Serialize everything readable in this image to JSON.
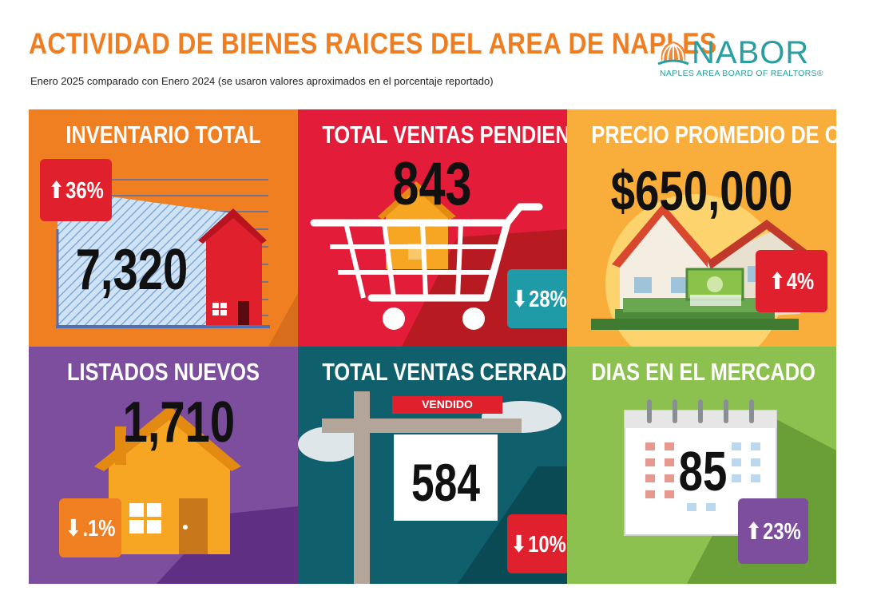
{
  "header": {
    "title": "ACTIVIDAD DE BIENES RAICES DEL AREA DE NAPLES",
    "subtitle": "Enero 2025 comparado con Enero 2024 (se usaron valores aproximados en el porcentaje reportado)",
    "logo_word": "NABOR",
    "logo_sub": "NAPLES AREA BOARD OF REALTORS®"
  },
  "tiles": [
    {
      "title": "INVENTARIO TOTAL",
      "value": "7,320",
      "change": "36%",
      "direction": "up",
      "bg": "#f07f22",
      "badge": "#e0202d"
    },
    {
      "title": "TOTAL VENTAS PENDIENTES",
      "value": "843",
      "change": "28%",
      "direction": "down",
      "bg": "#e31c3a",
      "badge": "#1e9ba6"
    },
    {
      "title": "PRECIO PROMEDIO DE CIERRE",
      "value": "$650,000",
      "change": "4%",
      "direction": "up",
      "bg": "#f9ad3a",
      "badge": "#e0202d"
    },
    {
      "title": "LISTADOS NUEVOS",
      "value": "1,710",
      "change": ".1%",
      "direction": "down",
      "bg": "#7d4d9e",
      "badge": "#f07f22"
    },
    {
      "title": "TOTAL VENTAS CERRADAS",
      "value": "584",
      "change": "10%",
      "direction": "down",
      "bg": "#0f5f6c",
      "badge": "#e0202d",
      "sign_label": "VENDIDO"
    },
    {
      "title": "DIAS EN EL MERCADO",
      "value": "85",
      "change": "23%",
      "direction": "up",
      "bg": "#8cc04f",
      "badge": "#7d4d9e"
    }
  ]
}
